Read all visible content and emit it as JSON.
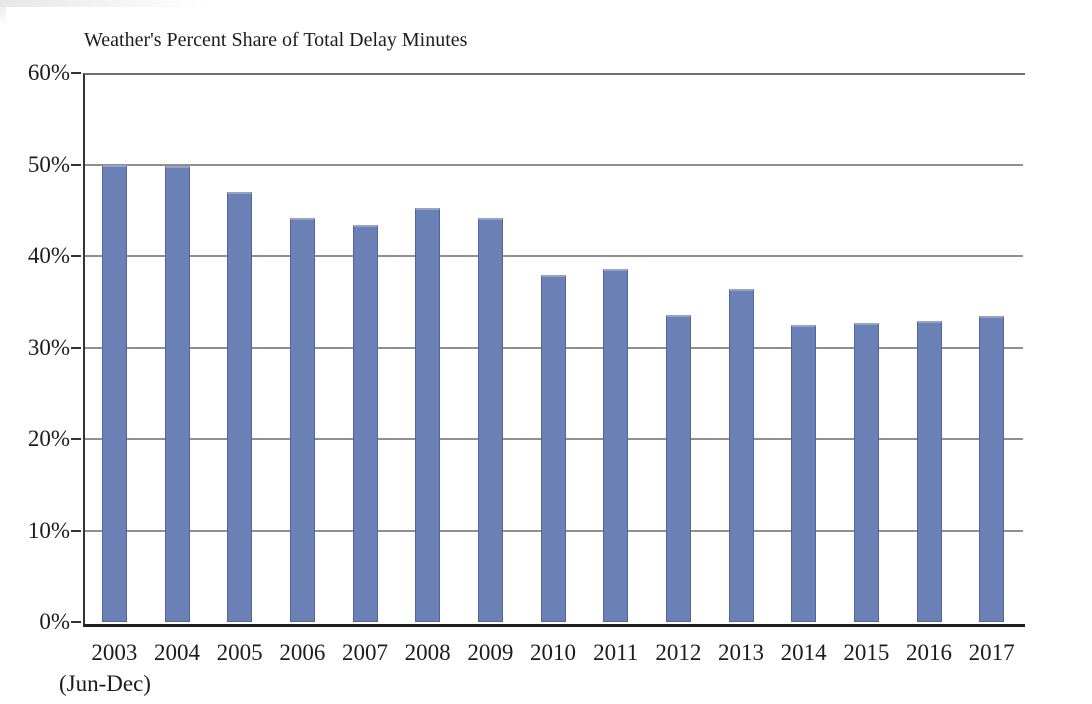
{
  "page": {
    "background": "#ffffff"
  },
  "chart_data": {
    "type": "bar",
    "title": "Weather's Percent Share of Total Delay Minutes",
    "categories": [
      "2003",
      "2004",
      "2005",
      "2006",
      "2007",
      "2008",
      "2009",
      "2010",
      "2011",
      "2012",
      "2013",
      "2014",
      "2015",
      "2016",
      "2017"
    ],
    "first_category_sublabel": "(Jun-Dec)",
    "values": [
      50.0,
      49.8,
      47.0,
      44.2,
      43.4,
      45.3,
      44.2,
      37.9,
      38.6,
      33.6,
      36.4,
      32.5,
      32.7,
      32.9,
      33.5
    ],
    "xlabel": "",
    "ylabel": "",
    "ylim": [
      0,
      60
    ],
    "ytick_step": 10,
    "ytick_labels": [
      "0%",
      "10%",
      "20%",
      "30%",
      "40%",
      "50%",
      "60%"
    ],
    "grid": "horizontal",
    "legend": "none",
    "colors": {
      "bar_fill": "#6b81b5",
      "bar_border": "#52659b",
      "bar_top_highlight": "#93a3c9",
      "gridline": "#8f8f8f",
      "gridline_top": "#6e6e6e",
      "axis_bottom": "#1f1f1f",
      "axis_left": "#333333",
      "text": "#1c1c1c"
    }
  }
}
